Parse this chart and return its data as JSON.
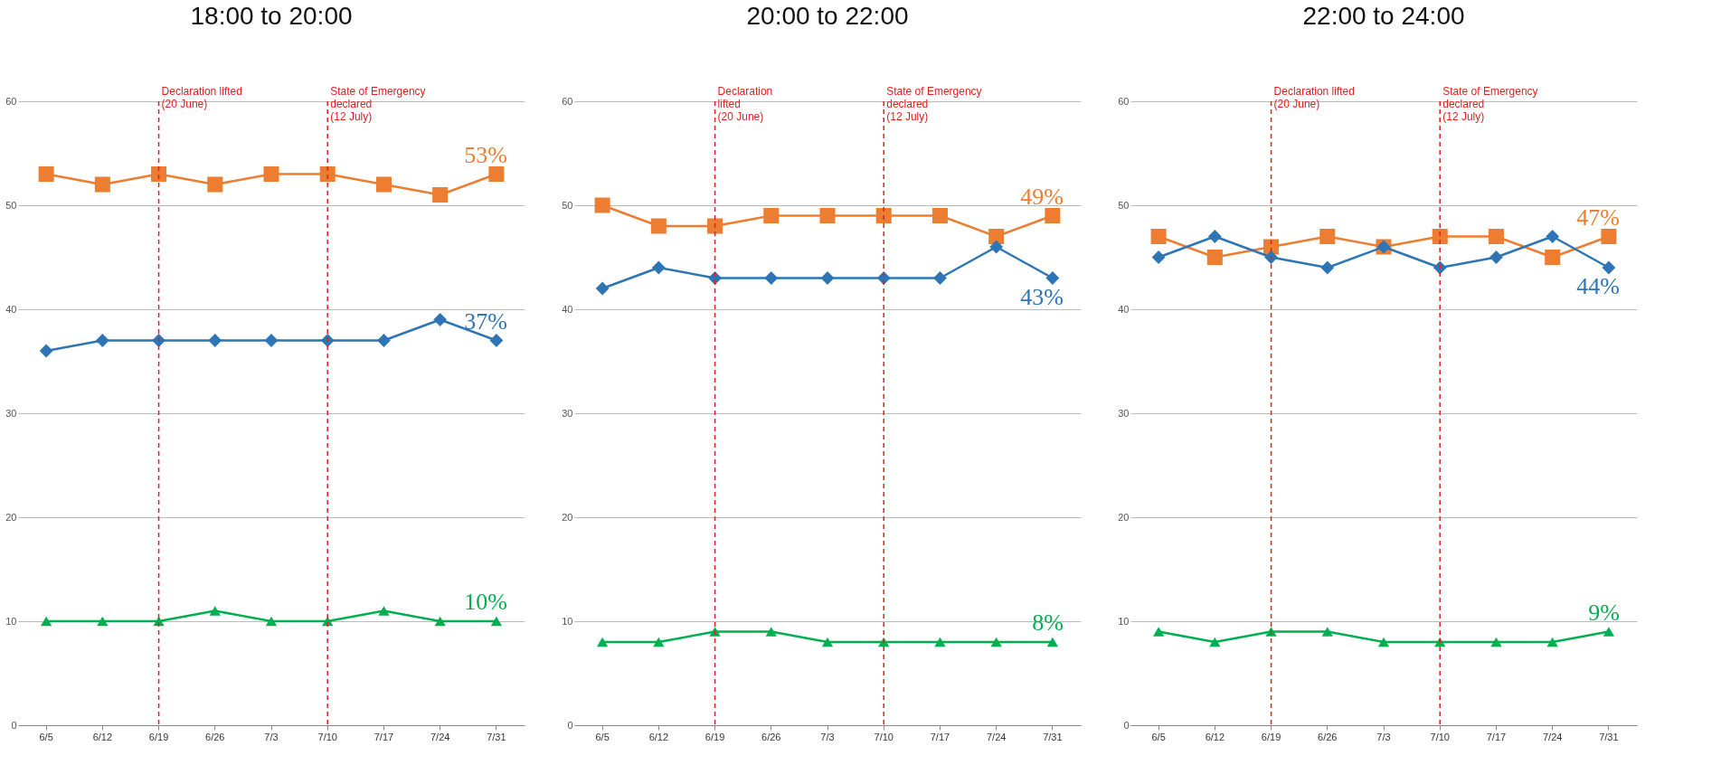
{
  "chart_data": [
    {
      "type": "line",
      "title": "18:00 to 20:00",
      "categories": [
        "6/5",
        "6/12",
        "6/19",
        "6/26",
        "7/3",
        "7/10",
        "7/17",
        "7/24",
        "7/31"
      ],
      "series": [
        {
          "color": "#ed7d31",
          "marker": "square",
          "values": [
            53,
            52,
            53,
            52,
            53,
            53,
            52,
            51,
            53
          ]
        },
        {
          "color": "#2e75b6",
          "marker": "diamond",
          "values": [
            36,
            37,
            37,
            37,
            37,
            37,
            37,
            39,
            37
          ]
        },
        {
          "color": "#00b050",
          "marker": "triangle",
          "values": [
            10,
            10,
            10,
            11,
            10,
            10,
            11,
            10,
            10
          ]
        }
      ],
      "ylim": [
        0,
        60
      ],
      "yticks": [
        0,
        10,
        20,
        30,
        40,
        50,
        60
      ],
      "grid": "y",
      "line_style": "solid",
      "ref_lines": [
        {
          "axis": "x",
          "value": "6/19",
          "label": "Declaration lifted\n(20 June)",
          "color": "#e02020",
          "line_style": "dashed"
        },
        {
          "axis": "x",
          "value": "7/10",
          "label": "State of Emergency\ndeclared\n(12 July)",
          "color": "#e02020",
          "line_style": "dashed"
        }
      ],
      "annotations": [
        {
          "text": "53%",
          "x": "7/31",
          "y": 53
        },
        {
          "text": "37%",
          "x": "7/31",
          "y": 37
        },
        {
          "text": "10%",
          "x": "7/31",
          "y": 10
        }
      ]
    },
    {
      "type": "line",
      "title": "20:00 to 22:00",
      "categories": [
        "6/5",
        "6/12",
        "6/19",
        "6/26",
        "7/3",
        "7/10",
        "7/17",
        "7/24",
        "7/31"
      ],
      "series": [
        {
          "color": "#ed7d31",
          "marker": "square",
          "values": [
            50,
            48,
            48,
            49,
            49,
            49,
            49,
            47,
            49
          ]
        },
        {
          "color": "#2e75b6",
          "marker": "diamond",
          "values": [
            42,
            44,
            43,
            43,
            43,
            43,
            43,
            46,
            43
          ]
        },
        {
          "color": "#00b050",
          "marker": "triangle",
          "values": [
            8,
            8,
            9,
            9,
            8,
            8,
            8,
            8,
            8
          ]
        }
      ],
      "ylim": [
        0,
        60
      ],
      "yticks": [
        0,
        10,
        20,
        30,
        40,
        50,
        60
      ],
      "grid": "y",
      "line_style": "solid",
      "ref_lines": [
        {
          "axis": "x",
          "value": "6/19",
          "label": "Declaration\nlifted\n(20 June)",
          "color": "#e02020",
          "line_style": "dashed"
        },
        {
          "axis": "x",
          "value": "7/10",
          "label": "State of Emergency\ndeclared\n(12 July)",
          "color": "#e02020",
          "line_style": "dashed"
        }
      ],
      "annotations": [
        {
          "text": "49%",
          "x": "7/31",
          "y": 49
        },
        {
          "text": "43%",
          "x": "7/31",
          "y": 43
        },
        {
          "text": "8%",
          "x": "7/31",
          "y": 8
        }
      ]
    },
    {
      "type": "line",
      "title": "22:00 to 24:00",
      "categories": [
        "6/5",
        "6/12",
        "6/19",
        "6/26",
        "7/3",
        "7/10",
        "7/17",
        "7/24",
        "7/31"
      ],
      "series": [
        {
          "color": "#ed7d31",
          "marker": "square",
          "values": [
            47,
            45,
            46,
            47,
            46,
            47,
            47,
            45,
            47
          ]
        },
        {
          "color": "#2e75b6",
          "marker": "diamond",
          "values": [
            45,
            47,
            45,
            44,
            46,
            44,
            45,
            47,
            44
          ]
        },
        {
          "color": "#00b050",
          "marker": "triangle",
          "values": [
            9,
            8,
            9,
            9,
            8,
            8,
            8,
            8,
            9
          ]
        }
      ],
      "ylim": [
        0,
        60
      ],
      "yticks": [
        0,
        10,
        20,
        30,
        40,
        50,
        60
      ],
      "grid": "y",
      "line_style": "solid",
      "ref_lines": [
        {
          "axis": "x",
          "value": "6/19",
          "label": "Declaration lifted\n(20 June)",
          "color": "#e02020",
          "line_style": "dashed"
        },
        {
          "axis": "x",
          "value": "7/10",
          "label": "State of Emergency\ndeclared\n(12 July)",
          "color": "#e02020",
          "line_style": "dashed"
        }
      ],
      "annotations": [
        {
          "text": "47%",
          "x": "7/31",
          "y": 47
        },
        {
          "text": "44%",
          "x": "7/31",
          "y": 44
        },
        {
          "text": "9%",
          "x": "7/31",
          "y": 9
        }
      ]
    }
  ]
}
